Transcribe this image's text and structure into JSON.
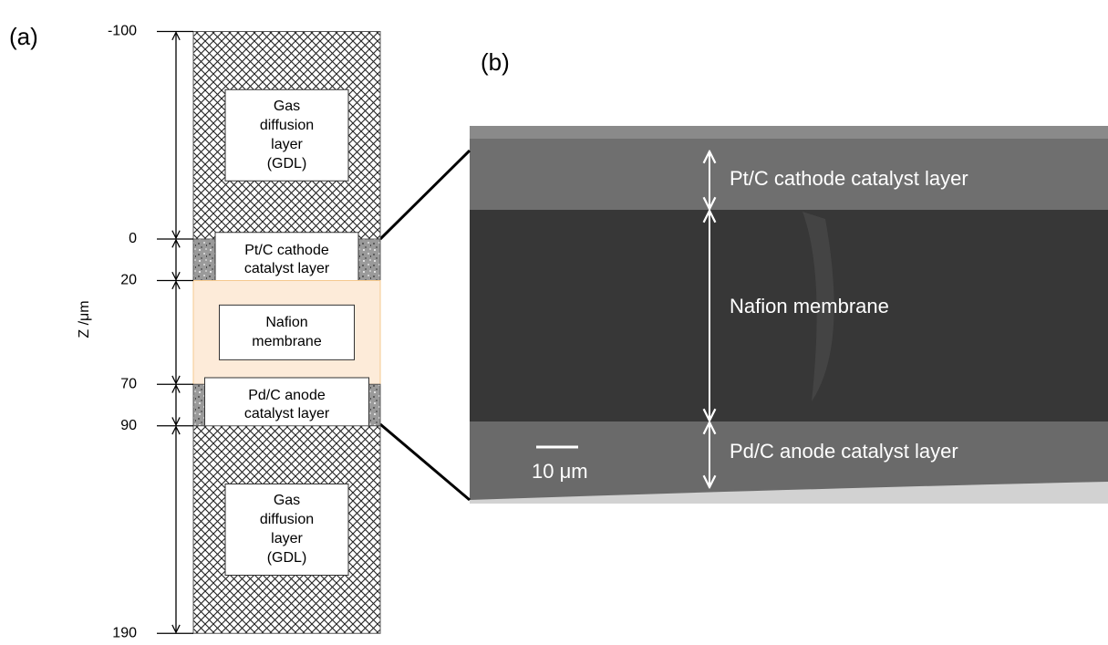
{
  "panel_a": {
    "label": "(a)",
    "axis_label": "Z /μm",
    "ticks": [
      -100,
      0,
      20,
      70,
      90,
      190
    ],
    "layers": [
      {
        "lines": [
          "Gas",
          "diffusion",
          "layer",
          "(GDL)"
        ]
      },
      {
        "lines": [
          "Pt/C cathode",
          "catalyst layer"
        ]
      },
      {
        "lines": [
          "Nafion",
          "membrane"
        ]
      },
      {
        "lines": [
          "Pd/C anode",
          "catalyst layer"
        ]
      },
      {
        "lines": [
          "Gas",
          "diffusion",
          "layer",
          "(GDL)"
        ]
      }
    ]
  },
  "panel_b": {
    "label": "(b)",
    "layers": [
      "Pt/C cathode catalyst layer",
      "Nafion membrane",
      "Pd/C anode catalyst layer"
    ],
    "scale_bar": "10 μm"
  }
}
